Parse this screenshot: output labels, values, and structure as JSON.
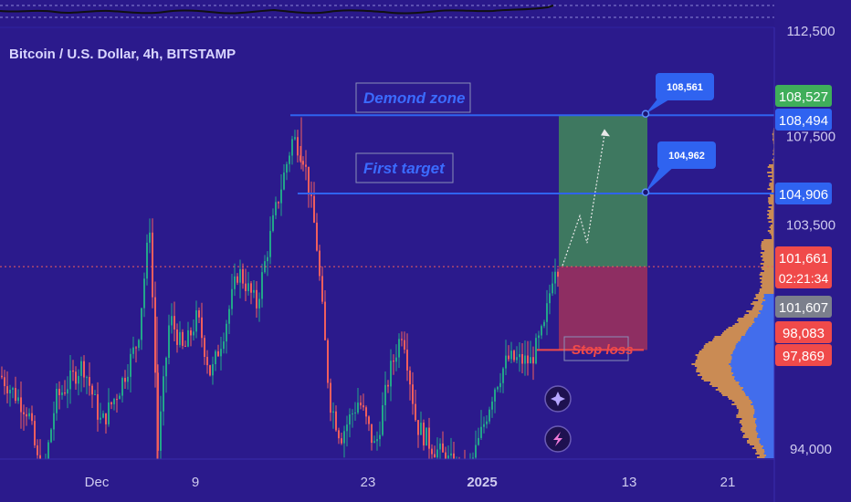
{
  "chart_data": {
    "type": "candlestick",
    "title": "Bitcoin / U.S. Dollar, 4h, BITSTAMP",
    "y_axis": {
      "scale": "log",
      "range": [
        91800,
        113800
      ],
      "ticks": [
        "112,500",
        "107,500",
        "103,500",
        "94,000"
      ]
    },
    "x_axis": {
      "ticks": [
        "Dec",
        "9",
        "23",
        "2025",
        "13",
        "21"
      ],
      "bold_tick": "2025"
    },
    "grid": false,
    "price_badges": [
      {
        "label": "108,527",
        "value": 108527,
        "color": "#3fae5a"
      },
      {
        "label": "108,494",
        "value": 108494,
        "color": "#2f63f0"
      },
      {
        "label": "104,906",
        "value": 104906,
        "color": "#2f63f0"
      },
      {
        "label": "101,661",
        "sub": "02:21:34",
        "value": 101661,
        "color": "#f04a4a"
      },
      {
        "label": "101,607",
        "value": 101607,
        "color": "#7b7f8c"
      },
      {
        "label": "98,083",
        "value": 98083,
        "color": "#f04a4a"
      },
      {
        "label": "97,869",
        "value": 97869,
        "color": "#f04a4a"
      }
    ],
    "annotations": [
      {
        "text": "Demond zone",
        "price": 108494,
        "color": "#3b6bff"
      },
      {
        "text": "First target",
        "price": 104906,
        "color": "#3b6bff"
      },
      {
        "text": "Stop loss",
        "price": 98083,
        "color": "#f04a4a"
      }
    ],
    "callouts": [
      {
        "text": "108,561",
        "price": 108561
      },
      {
        "text": "104,962",
        "price": 104962
      }
    ],
    "position": {
      "entry": 101661,
      "target": 108494,
      "stop": 98083,
      "profit_color": "#3f7d5e",
      "loss_color": "#932f60"
    },
    "current_price": 101661,
    "colors": {
      "background": "#2b1a8c",
      "up": "#22a58a",
      "down": "#f05e5e",
      "level_line": "#2f63f0",
      "stop_line": "#f04a4a"
    },
    "volume_profile": {
      "colors": [
        "#e6a04a",
        "#3a6cf4"
      ],
      "peak_price": 97600
    },
    "icons": [
      "sparkle-icon",
      "lightning-icon"
    ]
  }
}
